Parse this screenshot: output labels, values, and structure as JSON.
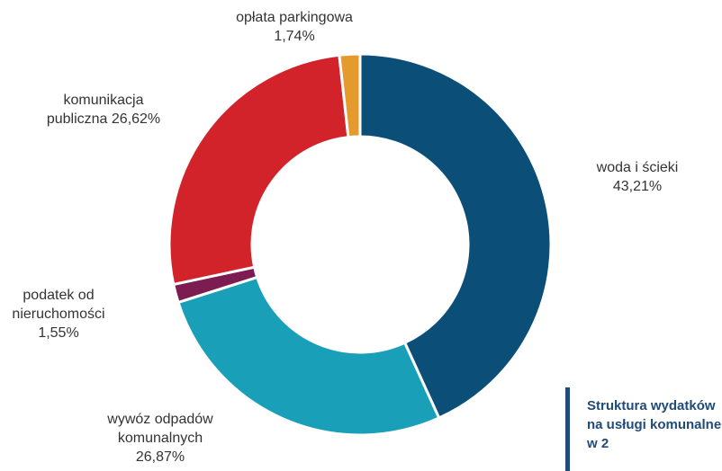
{
  "chart_data": {
    "type": "donut",
    "title": "Struktura wydatków na usługi komunalne w 2",
    "categories": [
      "woda i ścieki",
      "wywóz odpadów komunalnych",
      "podatek od nieruchomości",
      "komunikacja publiczna",
      "opłata parkingowa"
    ],
    "values": [
      43.21,
      26.87,
      1.55,
      26.62,
      1.74
    ],
    "value_labels": [
      "43,21%",
      "26,87%",
      "1,55%",
      "26,62%",
      "1,74%"
    ],
    "colors": [
      "#0b4e77",
      "#1a9fb9",
      "#7c1c50",
      "#d2232a",
      "#e49a2d"
    ]
  }
}
